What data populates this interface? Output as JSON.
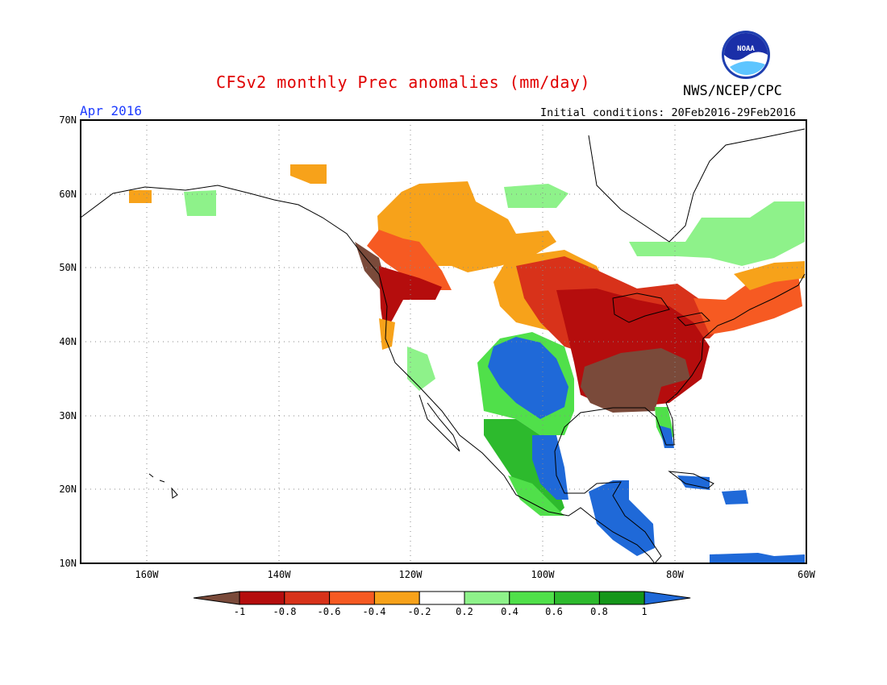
{
  "title": "CFSv2 monthly Prec anomalies (mm/day)",
  "agency": "NWS/NCEP/CPC",
  "logo_text": "NOAA",
  "valid_month": "Apr 2016",
  "initial_conditions": "Initial conditions: 20Feb2016-29Feb2016",
  "axes": {
    "lat_labels": [
      "70N",
      "60N",
      "50N",
      "40N",
      "30N",
      "20N",
      "10N"
    ],
    "lon_labels": [
      "160W",
      "140W",
      "120W",
      "100W",
      "80W",
      "60W"
    ]
  },
  "colorbar": {
    "labels": [
      "-1",
      "-0.8",
      "-0.6",
      "-0.4",
      "-0.2",
      "0.2",
      "0.4",
      "0.6",
      "0.8",
      "1"
    ],
    "colors": [
      "#7a4a3a",
      "#b50d0d",
      "#d8321a",
      "#f65a22",
      "#f7a21a",
      "#ffffff",
      "#8ef28a",
      "#50e04a",
      "#2dba2d",
      "#15961a",
      "#1f69d8"
    ]
  },
  "map": {
    "extent": {
      "lon": [
        -170,
        -60
      ],
      "lat": [
        10,
        70
      ]
    },
    "anomaly_regions": [
      {
        "name": "Southeast US",
        "category": "-1",
        "color": "#7a4a3a"
      },
      {
        "name": "Ohio Valley / Mid-Atlantic",
        "category": "-0.8",
        "color": "#b50d0d"
      },
      {
        "name": "Pacific Northwest coast",
        "category": "-1",
        "color": "#7a4a3a"
      },
      {
        "name": "Upper Midwest / Great Lakes",
        "category": "-0.6",
        "color": "#d8321a"
      },
      {
        "name": "Western Canada",
        "category": "-0.4",
        "color": "#f7a21a"
      },
      {
        "name": "Southern Plains / Texas",
        "category": "1",
        "color": "#1f69d8"
      },
      {
        "name": "Mexico",
        "category": "0.6",
        "color": "#2dba2d"
      },
      {
        "name": "Central America",
        "category": "1",
        "color": "#1f69d8"
      },
      {
        "name": "Quebec / Labrador",
        "category": "0.2",
        "color": "#8ef28a"
      }
    ]
  }
}
